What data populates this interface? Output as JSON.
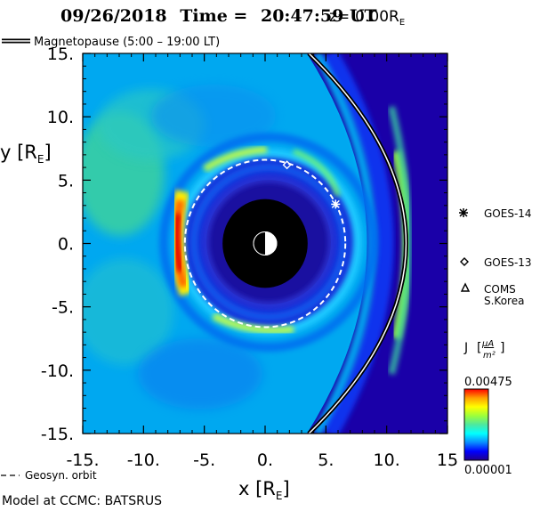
{
  "header": {
    "date": "09/26/2018",
    "time_label": "Time =",
    "time_value": "20:47:59 UT",
    "z_label": "z=",
    "z_value": "0.00R",
    "z_sub": "E"
  },
  "legend": {
    "magnetopause_label": "Magnetopause (5:00 – 19:00 LT)",
    "geosyn_label": "Geosyn. orbit"
  },
  "satellites": [
    {
      "name": "GOES-14",
      "symbol": "asterisk",
      "x": 5.8,
      "y": 3.1
    },
    {
      "name": "GOES-13",
      "symbol": "diamond",
      "x": 1.8,
      "y": 6.2
    },
    {
      "name": "COMS",
      "name2": "S.Korea",
      "symbol": "triangle"
    }
  ],
  "colorbar": {
    "title_j": "J",
    "title_num": "μA",
    "title_den": "m²",
    "max_label": "0.00475",
    "min_label": "0.00001",
    "colors": [
      "#22008a",
      "#0000ff",
      "#0a8cff",
      "#00ffff",
      "#4de8a0",
      "#9dff3a",
      "#ffff00",
      "#ffa000",
      "#ff0000"
    ]
  },
  "footer": {
    "model_label": "Model at CCMC: BATSRUS"
  },
  "chart_data": {
    "type": "heatmap",
    "title": "09/26/2018 Time = 20:47:59 UT z= 0.00RE",
    "xlabel": "x [R",
    "xlabel_sub": "E",
    "ylabel": "y [R",
    "ylabel_sub": "E",
    "xlim": [
      -15,
      15
    ],
    "ylim": [
      -15,
      15
    ],
    "x_ticks": [
      {
        "v": -15,
        "label": "-15."
      },
      {
        "v": -10,
        "label": "-10."
      },
      {
        "v": -5,
        "label": "-5."
      },
      {
        "v": 0,
        "label": "0."
      },
      {
        "v": 5,
        "label": "5."
      },
      {
        "v": 10,
        "label": "10."
      },
      {
        "v": 15,
        "label": "15"
      }
    ],
    "y_ticks": [
      {
        "v": 15,
        "label": "15."
      },
      {
        "v": 10,
        "label": "10."
      },
      {
        "v": 5,
        "label": "5."
      },
      {
        "v": 0,
        "label": "0."
      },
      {
        "v": -5,
        "label": "-5."
      },
      {
        "v": -10,
        "label": "-10."
      },
      {
        "v": -15,
        "label": "-15."
      }
    ],
    "colorbar_range": [
      1e-05,
      0.00475
    ],
    "earth_radius": 3.5,
    "geosyn_radius": 6.6,
    "magnetopause_subsolar_x": 11.8
  }
}
